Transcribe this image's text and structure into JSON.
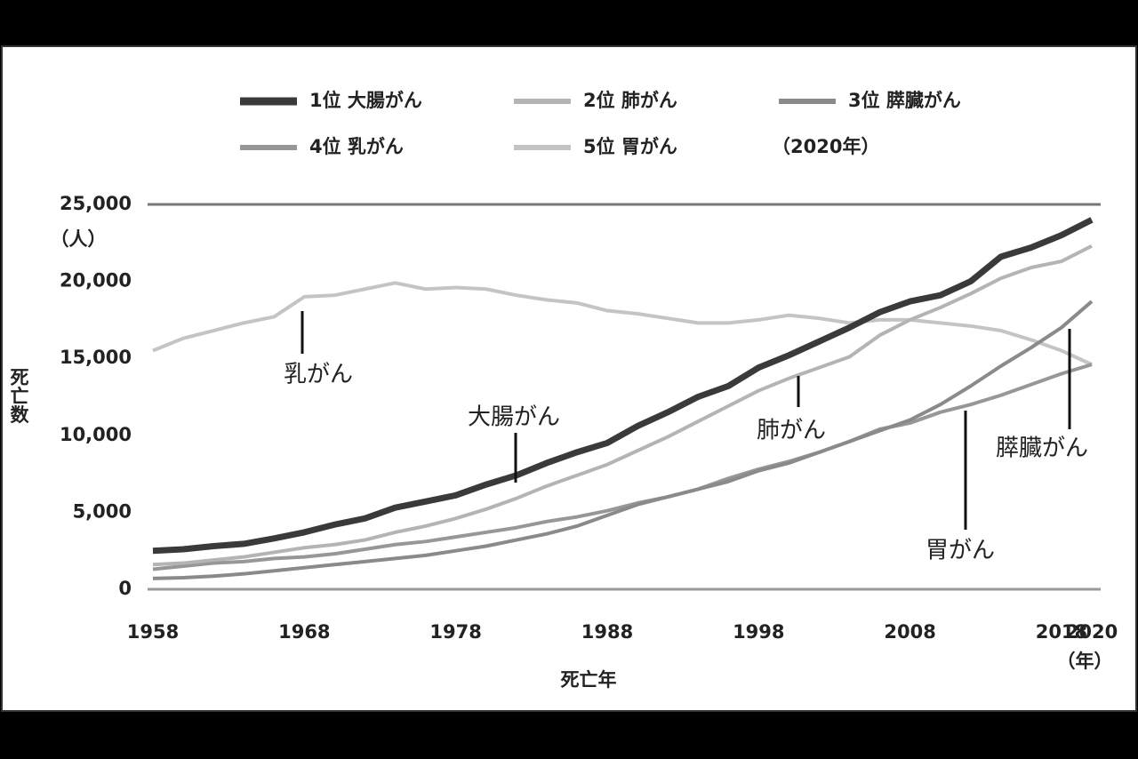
{
  "chart_data": {
    "type": "line",
    "x": [
      1958,
      1960,
      1962,
      1964,
      1966,
      1968,
      1970,
      1972,
      1974,
      1976,
      1978,
      1980,
      1982,
      1984,
      1986,
      1988,
      1990,
      1992,
      1994,
      1996,
      1998,
      2000,
      2002,
      2004,
      2006,
      2008,
      2010,
      2012,
      2014,
      2016,
      2018,
      2020
    ],
    "series": [
      {
        "name": "1位 大腸がん",
        "color": "#3a3a3a",
        "values": [
          2500,
          2600,
          2800,
          2950,
          3300,
          3700,
          4200,
          4600,
          5300,
          5700,
          6100,
          6800,
          7400,
          8200,
          8900,
          9500,
          10600,
          11500,
          12500,
          13200,
          14400,
          15200,
          16100,
          17000,
          18000,
          18700,
          19100,
          20000,
          21600,
          22200,
          23000,
          24000
        ]
      },
      {
        "name": "2位 肺がん",
        "color": "#b4b4b4",
        "values": [
          1600,
          1700,
          1900,
          2100,
          2400,
          2700,
          2900,
          3200,
          3700,
          4100,
          4600,
          5200,
          5900,
          6700,
          7400,
          8100,
          9000,
          9900,
          10900,
          11900,
          12900,
          13700,
          14400,
          15100,
          16500,
          17500,
          18300,
          19200,
          20200,
          20900,
          21300,
          22300
        ]
      },
      {
        "name": "3位 膵臓がん",
        "color": "#8a8a8a",
        "values": [
          700,
          750,
          850,
          1000,
          1200,
          1400,
          1600,
          1800,
          2000,
          2200,
          2500,
          2800,
          3200,
          3600,
          4100,
          4800,
          5500,
          6000,
          6500,
          7000,
          7700,
          8200,
          8900,
          9600,
          10300,
          11000,
          12000,
          13200,
          14500,
          15700,
          17000,
          18700
        ]
      },
      {
        "name": "4位 乳がん",
        "color": "#979797",
        "values": [
          1300,
          1500,
          1700,
          1800,
          2000,
          2100,
          2300,
          2600,
          2900,
          3100,
          3400,
          3700,
          4000,
          4400,
          4700,
          5100,
          5600,
          6000,
          6500,
          7200,
          7800,
          8300,
          8900,
          9600,
          10400,
          10800,
          11500,
          12000,
          12600,
          13300,
          14000,
          14600
        ]
      },
      {
        "name": "5位 胃がん",
        "color": "#c4c4c4",
        "values": [
          15500,
          16300,
          16800,
          17300,
          17700,
          19000,
          19100,
          19500,
          19900,
          19500,
          19600,
          19500,
          19100,
          18800,
          18600,
          18100,
          17900,
          17600,
          17300,
          17300,
          17500,
          17800,
          17600,
          17300,
          17500,
          17500,
          17300,
          17100,
          16800,
          16200,
          15500,
          14600
        ]
      }
    ],
    "legend_note": "（2020年）",
    "xlim": [
      1958,
      2020
    ],
    "xticks": [
      1958,
      1968,
      1978,
      1988,
      1998,
      2008,
      2018,
      2020
    ],
    "ylim": [
      0,
      25000
    ],
    "yticks": [
      0,
      {
        "value": 5000,
        "label": "5,000"
      },
      {
        "value": 10000,
        "label": "10,000"
      },
      {
        "value": 15000,
        "label": "15,000"
      },
      {
        "value": 20000,
        "label": "20,000"
      },
      {
        "value": 25000,
        "label": "25,000"
      }
    ],
    "y_unit": "（人）",
    "y_label": "死亡数",
    "x_label": "死亡年",
    "x_unit": "（年）",
    "annotations": [
      "乳がん",
      "大腸がん",
      "肺がん",
      "膵臓がん",
      "胃がん"
    ]
  }
}
